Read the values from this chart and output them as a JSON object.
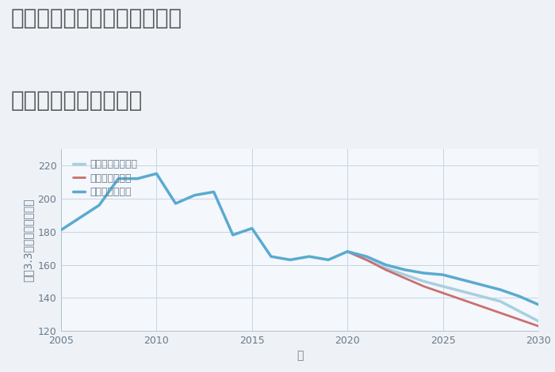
{
  "title_line1": "神奈川県横浜市青葉区奈良の",
  "title_line2": "中古戸建ての価格推移",
  "xlabel": "年",
  "ylabel": "平（3.3㎡）単価（万円）",
  "background_color": "#eef2f7",
  "plot_bg_color": "#f4f7fb",
  "xlim": [
    2005,
    2030
  ],
  "ylim": [
    120,
    230
  ],
  "yticks": [
    120,
    140,
    160,
    180,
    200,
    220
  ],
  "xticks": [
    2005,
    2010,
    2015,
    2020,
    2025,
    2030
  ],
  "good_scenario": {
    "label": "グッドシナリオ",
    "color": "#5aaad0",
    "linewidth": 2.5,
    "x": [
      2005,
      2007,
      2008,
      2009,
      2010,
      2011,
      2012,
      2013,
      2014,
      2015,
      2016,
      2017,
      2018,
      2019,
      2020,
      2021,
      2022,
      2023,
      2024,
      2025,
      2026,
      2027,
      2028,
      2029,
      2030
    ],
    "y": [
      181,
      196,
      212,
      212,
      215,
      197,
      202,
      204,
      178,
      182,
      165,
      163,
      165,
      163,
      168,
      165,
      160,
      157,
      155,
      154,
      151,
      148,
      145,
      141,
      136
    ]
  },
  "bad_scenario": {
    "label": "バッドシナリオ",
    "color": "#c97070",
    "linewidth": 2.0,
    "x": [
      2020,
      2021,
      2022,
      2023,
      2024,
      2025,
      2026,
      2027,
      2028,
      2029,
      2030
    ],
    "y": [
      168,
      163,
      157,
      152,
      147,
      143,
      139,
      135,
      131,
      127,
      123
    ]
  },
  "normal_scenario": {
    "label": "ノーマルシナリオ",
    "color": "#a8cfe0",
    "linewidth": 2.5,
    "x": [
      2020,
      2021,
      2022,
      2023,
      2024,
      2025,
      2026,
      2027,
      2028,
      2029,
      2030
    ],
    "y": [
      168,
      163,
      158,
      154,
      150,
      147,
      144,
      141,
      138,
      132,
      126
    ]
  },
  "title_fontsize": 20,
  "axis_label_fontsize": 10,
  "tick_fontsize": 9,
  "legend_fontsize": 9,
  "grid_color": "#c5d5e5",
  "spine_color": "#b0c0d0",
  "tick_color": "#6a7a8a",
  "label_color": "#6a7a8a",
  "title_color": "#555555"
}
